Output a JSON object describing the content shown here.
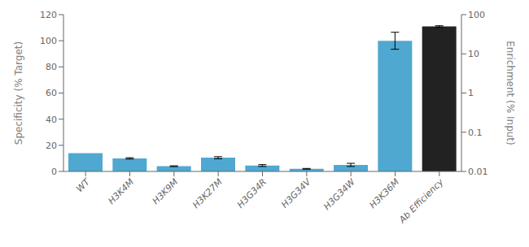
{
  "chart_data": {
    "type": "bar",
    "categories": [
      "WT",
      "H3K4M",
      "H3K9M",
      "H3K27M",
      "H3G34R",
      "H3G34V",
      "H3G34W",
      "H3K36M",
      "Ab Efficiency"
    ],
    "series": [
      {
        "color": "#4FA8D0",
        "values": [
          14.0,
          10.0,
          4.0,
          10.5,
          4.5,
          2.0,
          5.0,
          100.0,
          null
        ],
        "errors": [
          0.0,
          0.5,
          0.3,
          0.8,
          0.7,
          0.3,
          1.2,
          6.5,
          null
        ]
      },
      {
        "color": "#222222",
        "axis": "y2",
        "values": [
          null,
          null,
          null,
          null,
          null,
          null,
          null,
          null,
          50.0
        ],
        "errors": [
          null,
          null,
          null,
          null,
          null,
          null,
          null,
          null,
          2.0
        ]
      }
    ],
    "ylabel": "Specificity (% Target)",
    "y2label": "Enrichment (% Input)",
    "ylim": [
      0,
      120
    ],
    "yticks": [
      0,
      20,
      40,
      60,
      80,
      100,
      120
    ],
    "y2lim": [
      0.01,
      100
    ],
    "y2ticks": [
      0.01,
      0.1,
      1,
      10,
      100
    ],
    "log": "y2",
    "grid": false
  }
}
